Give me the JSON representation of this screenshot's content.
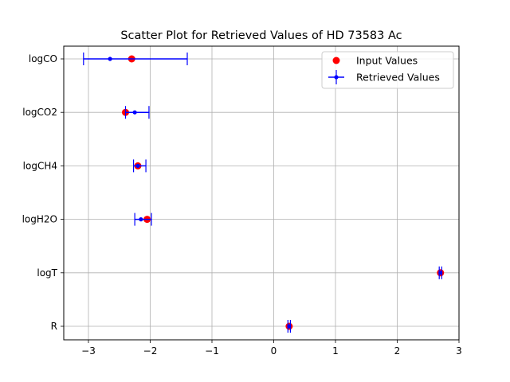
{
  "chart_data": {
    "type": "scatter",
    "title": "Scatter Plot for Retrieved Values of HD 73583 Ac",
    "xlabel": "",
    "ylabel": "",
    "xlim": [
      -3.4,
      3.0
    ],
    "xticks": [
      -3,
      -2,
      -1,
      0,
      1,
      2,
      3
    ],
    "xtick_labels": [
      "−3",
      "−2",
      "−1",
      "0",
      "1",
      "2",
      "3"
    ],
    "categories": [
      "R",
      "logT",
      "logH2O",
      "logCH4",
      "logCO2",
      "logCO"
    ],
    "grid": true,
    "legend_position": "top-right",
    "series": [
      {
        "name": "Input Values",
        "kind": "marker",
        "color": "#ff0000",
        "values": [
          0.25,
          2.7,
          -2.05,
          -2.2,
          -2.4,
          -2.3
        ]
      },
      {
        "name": "Retrieved Values",
        "kind": "errorbar",
        "color": "#0000ff",
        "values": [
          0.25,
          2.7,
          -2.15,
          -2.2,
          -2.25,
          -2.65
        ],
        "err_low": [
          0.02,
          0.02,
          0.1,
          0.07,
          0.15,
          0.43
        ],
        "err_high": [
          0.02,
          0.02,
          0.17,
          0.13,
          0.23,
          1.25
        ]
      }
    ]
  }
}
